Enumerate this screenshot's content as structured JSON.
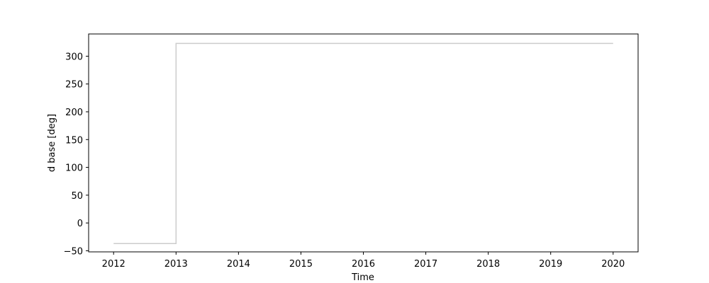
{
  "chart_data": {
    "type": "line",
    "title": "",
    "xlabel": "Time",
    "ylabel": "d base [deg]",
    "xlim": [
      2011.6,
      2020.4
    ],
    "ylim": [
      -52,
      340
    ],
    "xticks": [
      2012,
      2013,
      2014,
      2015,
      2016,
      2017,
      2018,
      2019,
      2020
    ],
    "xtick_labels": [
      "2012",
      "2013",
      "2014",
      "2015",
      "2016",
      "2017",
      "2018",
      "2019",
      "2020"
    ],
    "yticks": [
      -50,
      0,
      50,
      100,
      150,
      200,
      250,
      300
    ],
    "ytick_labels": [
      "−50",
      "0",
      "50",
      "100",
      "150",
      "200",
      "250",
      "300"
    ],
    "grid": false,
    "series": [
      {
        "color": "#cccccc",
        "step": true,
        "points": [
          {
            "x": 2012,
            "y": -37
          },
          {
            "x": 2013,
            "y": -37
          },
          {
            "x": 2013,
            "y": 323
          },
          {
            "x": 2020,
            "y": 323
          }
        ]
      }
    ]
  }
}
